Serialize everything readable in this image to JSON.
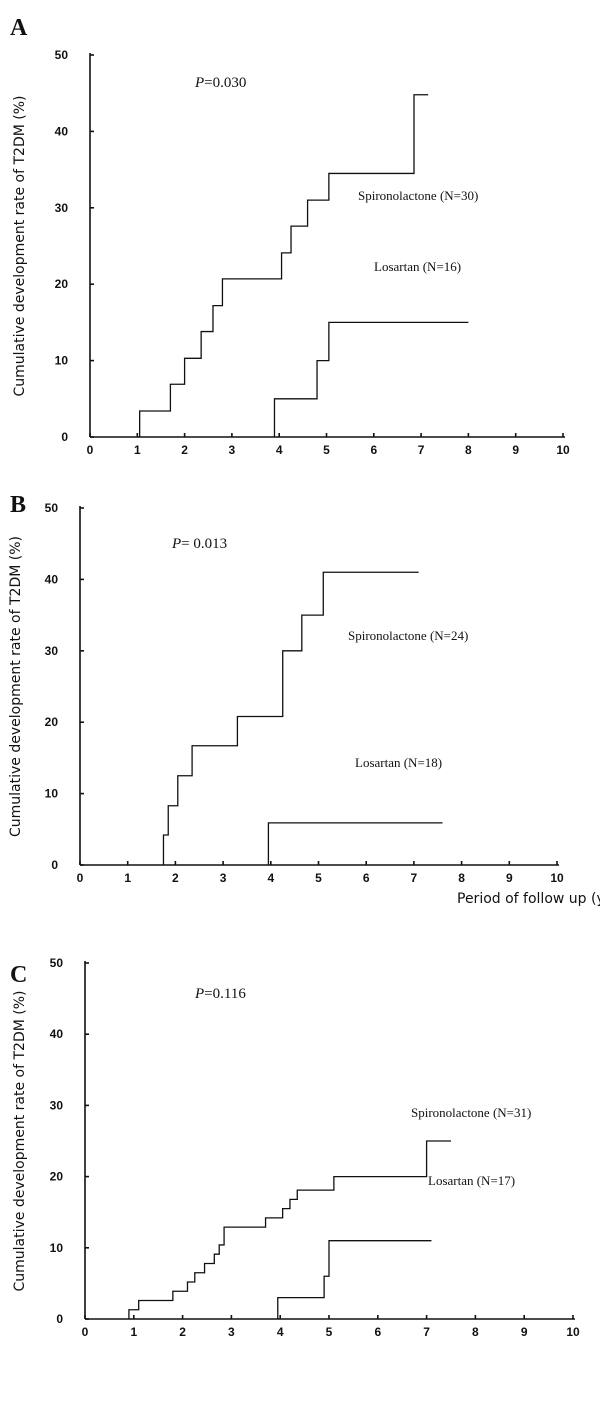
{
  "chart_data": [
    {
      "panel": "A",
      "type": "line",
      "step": true,
      "p_value_label": "P",
      "p_value_text": "=0.030",
      "ylabel": "Cumulative development rate of T2DM (%)",
      "xlabel": "",
      "xlim": [
        0,
        10
      ],
      "ylim": [
        0,
        50
      ],
      "x_ticks": [
        0,
        1,
        2,
        3,
        4,
        5,
        6,
        7,
        8,
        9,
        10
      ],
      "y_ticks": [
        0,
        10,
        20,
        30,
        40,
        50
      ],
      "series": [
        {
          "name": "Spironolactone (N=30)",
          "x": [
            1.05,
            1.7,
            2.0,
            2.35,
            2.6,
            2.8,
            4.05,
            4.25,
            4.6,
            5.05,
            6.85,
            7.15
          ],
          "y": [
            3.4,
            6.9,
            10.3,
            13.8,
            17.2,
            20.7,
            24.1,
            27.6,
            31.0,
            34.5,
            44.8,
            44.8
          ]
        },
        {
          "name": "Losartan (N=16)",
          "x": [
            3.9,
            4.8,
            5.05,
            8.0
          ],
          "y": [
            5.0,
            10.0,
            15.0,
            15.0
          ]
        }
      ]
    },
    {
      "panel": "B",
      "type": "line",
      "step": true,
      "p_value_label": "P",
      "p_value_text": "= 0.013",
      "ylabel": "Cumulative development rate of T2DM (%)",
      "xlabel": "Period of follow up (year)",
      "xlim": [
        0,
        10
      ],
      "ylim": [
        0,
        50
      ],
      "x_ticks": [
        0,
        1,
        2,
        3,
        4,
        5,
        6,
        7,
        8,
        9,
        10
      ],
      "y_ticks": [
        0,
        10,
        20,
        30,
        40,
        50
      ],
      "series": [
        {
          "name": "Spironolactone (N=24)",
          "x": [
            1.75,
            1.85,
            2.05,
            2.35,
            3.3,
            4.25,
            4.65,
            5.1,
            7.1
          ],
          "y": [
            4.2,
            8.3,
            12.5,
            16.7,
            20.8,
            30.0,
            35.0,
            41.0,
            41.0
          ]
        },
        {
          "name": "Losartan (N=18)",
          "x": [
            3.95,
            7.6
          ],
          "y": [
            5.9,
            5.9
          ]
        }
      ]
    },
    {
      "panel": "C",
      "type": "line",
      "step": true,
      "p_value_label": "P",
      "p_value_text": "=0.116",
      "ylabel": "Cumulative development rate of T2DM (%)",
      "xlabel": "",
      "xlim": [
        0,
        10
      ],
      "ylim": [
        0,
        50
      ],
      "x_ticks": [
        0,
        1,
        2,
        3,
        4,
        5,
        6,
        7,
        8,
        9,
        10
      ],
      "y_ticks": [
        0,
        10,
        20,
        30,
        40,
        50
      ],
      "series": [
        {
          "name": "Spironolactone (N=31)",
          "x": [
            0.9,
            1.1,
            1.8,
            2.1,
            2.25,
            2.45,
            2.65,
            2.75,
            2.85,
            3.7,
            4.05,
            4.2,
            4.35,
            5.1,
            7.0,
            7.5
          ],
          "y": [
            1.3,
            2.6,
            3.9,
            5.2,
            6.5,
            7.8,
            9.1,
            10.4,
            12.9,
            14.2,
            15.5,
            16.8,
            18.1,
            20.0,
            25.0,
            25.0
          ]
        },
        {
          "name": "Losartan (N=17)",
          "x": [
            3.95,
            4.9,
            5.0,
            7.1
          ],
          "y": [
            3.0,
            6.0,
            11.0,
            11.0
          ]
        }
      ]
    }
  ]
}
